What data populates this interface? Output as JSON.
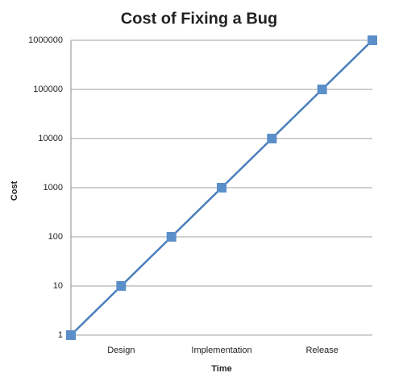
{
  "chart_data": {
    "type": "line",
    "title": "Cost of Fixing a Bug",
    "x_label": "Time",
    "y_label": "Cost",
    "categories": [
      null,
      "Design",
      null,
      "Implementation",
      null,
      "Release",
      null
    ],
    "values": [
      1,
      10,
      100,
      1000,
      10000,
      100000,
      1000000
    ],
    "color": "#4a7ebb",
    "marker_color": "#5b8fc9",
    "ylim": [
      1,
      1000000
    ],
    "yticks": [
      1,
      10,
      100,
      1000,
      10000,
      100000,
      1000000
    ],
    "y_log_scale": true,
    "grid": true
  }
}
